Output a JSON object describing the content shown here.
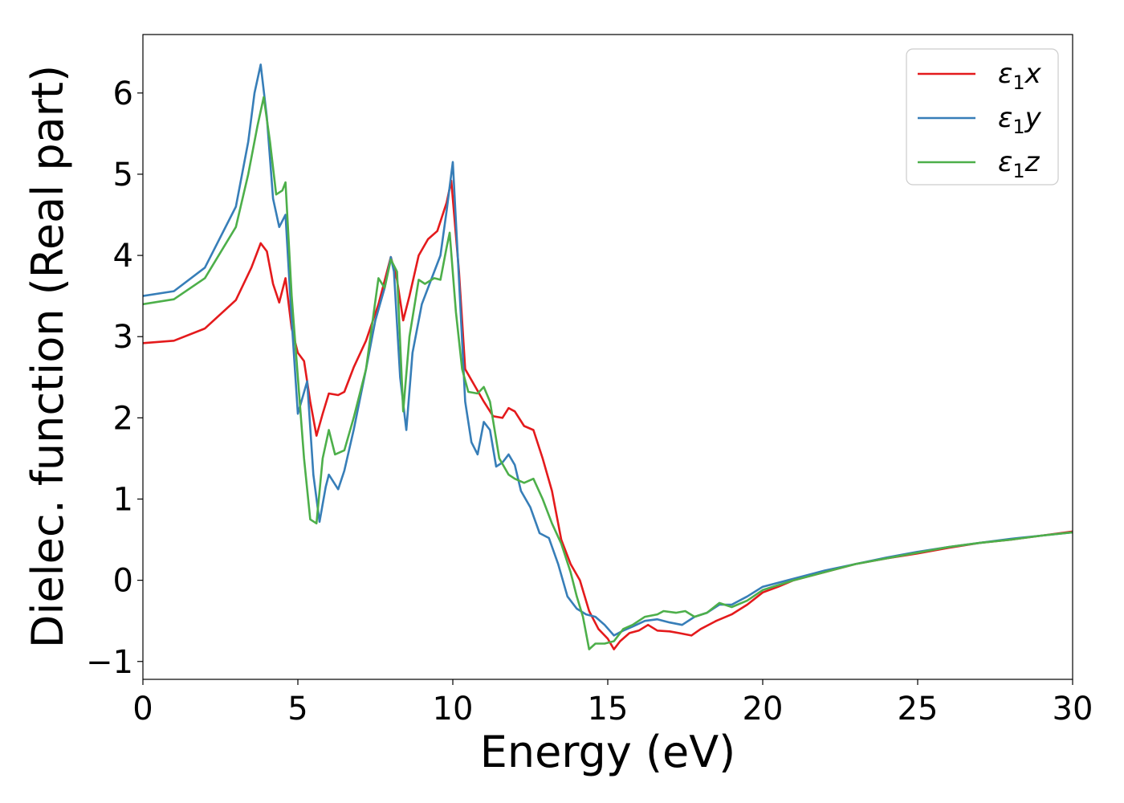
{
  "chart_data": {
    "type": "line",
    "title": "",
    "xlabel": "Energy (eV)",
    "ylabel": "Dielec. function (Real part)",
    "xlim": [
      0,
      30
    ],
    "ylim": [
      -1.22,
      6.72
    ],
    "xticks": [
      0,
      5,
      10,
      15,
      20,
      25,
      30
    ],
    "xtick_labels": [
      "0",
      "5",
      "10",
      "15",
      "20",
      "25",
      "30"
    ],
    "yticks": [
      -1,
      0,
      1,
      2,
      3,
      4,
      5,
      6
    ],
    "ytick_labels": [
      "−1",
      "0",
      "1",
      "2",
      "3",
      "4",
      "5",
      "6"
    ],
    "grid": false,
    "legend_position": "top-right",
    "series": [
      {
        "name": "ε1x",
        "color": "#e41a1c",
        "points": [
          [
            0,
            2.92
          ],
          [
            1,
            2.95
          ],
          [
            2,
            3.1
          ],
          [
            3,
            3.45
          ],
          [
            3.5,
            3.85
          ],
          [
            3.8,
            4.15
          ],
          [
            4.0,
            4.05
          ],
          [
            4.2,
            3.65
          ],
          [
            4.4,
            3.42
          ],
          [
            4.6,
            3.72
          ],
          [
            4.8,
            3.1
          ],
          [
            5.0,
            2.8
          ],
          [
            5.2,
            2.7
          ],
          [
            5.4,
            2.2
          ],
          [
            5.6,
            1.78
          ],
          [
            5.8,
            2.05
          ],
          [
            6.0,
            2.3
          ],
          [
            6.3,
            2.28
          ],
          [
            6.5,
            2.32
          ],
          [
            6.8,
            2.62
          ],
          [
            7.2,
            2.95
          ],
          [
            7.6,
            3.4
          ],
          [
            8.0,
            3.98
          ],
          [
            8.2,
            3.7
          ],
          [
            8.4,
            3.2
          ],
          [
            8.6,
            3.5
          ],
          [
            8.9,
            4.0
          ],
          [
            9.2,
            4.2
          ],
          [
            9.5,
            4.3
          ],
          [
            9.8,
            4.65
          ],
          [
            9.95,
            4.92
          ],
          [
            10.2,
            3.8
          ],
          [
            10.4,
            2.6
          ],
          [
            10.7,
            2.4
          ],
          [
            11.0,
            2.2
          ],
          [
            11.3,
            2.02
          ],
          [
            11.6,
            2.0
          ],
          [
            11.8,
            2.12
          ],
          [
            12.0,
            2.08
          ],
          [
            12.3,
            1.9
          ],
          [
            12.6,
            1.85
          ],
          [
            12.9,
            1.5
          ],
          [
            13.2,
            1.1
          ],
          [
            13.5,
            0.5
          ],
          [
            13.8,
            0.2
          ],
          [
            14.1,
            0.0
          ],
          [
            14.4,
            -0.38
          ],
          [
            14.7,
            -0.6
          ],
          [
            15.0,
            -0.72
          ],
          [
            15.2,
            -0.85
          ],
          [
            15.4,
            -0.75
          ],
          [
            15.7,
            -0.65
          ],
          [
            16.0,
            -0.62
          ],
          [
            16.3,
            -0.55
          ],
          [
            16.6,
            -0.62
          ],
          [
            17.0,
            -0.63
          ],
          [
            17.3,
            -0.65
          ],
          [
            17.7,
            -0.68
          ],
          [
            18.0,
            -0.6
          ],
          [
            18.5,
            -0.5
          ],
          [
            19.0,
            -0.42
          ],
          [
            19.5,
            -0.3
          ],
          [
            20.0,
            -0.15
          ],
          [
            20.5,
            -0.08
          ],
          [
            21.0,
            0.0
          ],
          [
            22.0,
            0.1
          ],
          [
            23.0,
            0.2
          ],
          [
            24.0,
            0.27
          ],
          [
            25.0,
            0.33
          ],
          [
            26.0,
            0.4
          ],
          [
            27.0,
            0.46
          ],
          [
            28.0,
            0.5
          ],
          [
            29.0,
            0.55
          ],
          [
            30.0,
            0.6
          ]
        ]
      },
      {
        "name": "ε1y",
        "color": "#377eb8",
        "points": [
          [
            0,
            3.5
          ],
          [
            1,
            3.56
          ],
          [
            2,
            3.85
          ],
          [
            3,
            4.6
          ],
          [
            3.4,
            5.4
          ],
          [
            3.6,
            6.0
          ],
          [
            3.8,
            6.35
          ],
          [
            4.0,
            5.7
          ],
          [
            4.2,
            4.7
          ],
          [
            4.4,
            4.35
          ],
          [
            4.6,
            4.5
          ],
          [
            4.8,
            3.2
          ],
          [
            5.0,
            2.05
          ],
          [
            5.3,
            2.45
          ],
          [
            5.5,
            1.3
          ],
          [
            5.7,
            0.72
          ],
          [
            5.9,
            1.15
          ],
          [
            6.0,
            1.3
          ],
          [
            6.3,
            1.12
          ],
          [
            6.5,
            1.35
          ],
          [
            6.8,
            1.85
          ],
          [
            7.2,
            2.6
          ],
          [
            7.5,
            3.2
          ],
          [
            7.8,
            3.6
          ],
          [
            8.0,
            3.98
          ],
          [
            8.1,
            3.8
          ],
          [
            8.3,
            2.5
          ],
          [
            8.5,
            1.85
          ],
          [
            8.7,
            2.8
          ],
          [
            9.0,
            3.4
          ],
          [
            9.3,
            3.7
          ],
          [
            9.6,
            4.0
          ],
          [
            9.8,
            4.55
          ],
          [
            10.0,
            5.15
          ],
          [
            10.2,
            3.7
          ],
          [
            10.4,
            2.2
          ],
          [
            10.6,
            1.7
          ],
          [
            10.8,
            1.55
          ],
          [
            11.0,
            1.95
          ],
          [
            11.2,
            1.85
          ],
          [
            11.4,
            1.4
          ],
          [
            11.6,
            1.45
          ],
          [
            11.8,
            1.55
          ],
          [
            12.0,
            1.42
          ],
          [
            12.2,
            1.1
          ],
          [
            12.5,
            0.9
          ],
          [
            12.8,
            0.58
          ],
          [
            13.1,
            0.52
          ],
          [
            13.4,
            0.2
          ],
          [
            13.7,
            -0.2
          ],
          [
            14.0,
            -0.35
          ],
          [
            14.3,
            -0.42
          ],
          [
            14.6,
            -0.45
          ],
          [
            14.9,
            -0.55
          ],
          [
            15.2,
            -0.68
          ],
          [
            15.5,
            -0.62
          ],
          [
            15.8,
            -0.57
          ],
          [
            16.2,
            -0.5
          ],
          [
            16.6,
            -0.48
          ],
          [
            17.0,
            -0.52
          ],
          [
            17.4,
            -0.55
          ],
          [
            17.8,
            -0.45
          ],
          [
            18.2,
            -0.4
          ],
          [
            18.6,
            -0.3
          ],
          [
            19.0,
            -0.3
          ],
          [
            19.5,
            -0.2
          ],
          [
            20.0,
            -0.08
          ],
          [
            21.0,
            0.02
          ],
          [
            22.0,
            0.12
          ],
          [
            23.0,
            0.2
          ],
          [
            24.0,
            0.28
          ],
          [
            25.0,
            0.35
          ],
          [
            26.0,
            0.41
          ],
          [
            27.0,
            0.46
          ],
          [
            28.0,
            0.51
          ],
          [
            29.0,
            0.55
          ],
          [
            30.0,
            0.59
          ]
        ]
      },
      {
        "name": "ε1z",
        "color": "#4daf4a",
        "points": [
          [
            0,
            3.4
          ],
          [
            1,
            3.46
          ],
          [
            2,
            3.72
          ],
          [
            3,
            4.35
          ],
          [
            3.4,
            5.0
          ],
          [
            3.7,
            5.6
          ],
          [
            3.9,
            5.95
          ],
          [
            4.1,
            5.4
          ],
          [
            4.3,
            4.75
          ],
          [
            4.5,
            4.8
          ],
          [
            4.6,
            4.9
          ],
          [
            4.8,
            3.5
          ],
          [
            5.0,
            2.5
          ],
          [
            5.2,
            1.5
          ],
          [
            5.4,
            0.75
          ],
          [
            5.6,
            0.7
          ],
          [
            5.8,
            1.5
          ],
          [
            6.0,
            1.85
          ],
          [
            6.2,
            1.55
          ],
          [
            6.5,
            1.6
          ],
          [
            6.8,
            2.0
          ],
          [
            7.2,
            2.6
          ],
          [
            7.6,
            3.72
          ],
          [
            7.8,
            3.6
          ],
          [
            8.0,
            3.95
          ],
          [
            8.2,
            3.8
          ],
          [
            8.4,
            2.08
          ],
          [
            8.6,
            3.0
          ],
          [
            8.9,
            3.7
          ],
          [
            9.1,
            3.65
          ],
          [
            9.4,
            3.72
          ],
          [
            9.6,
            3.7
          ],
          [
            9.8,
            4.1
          ],
          [
            9.9,
            4.28
          ],
          [
            10.1,
            3.3
          ],
          [
            10.3,
            2.6
          ],
          [
            10.5,
            2.32
          ],
          [
            10.8,
            2.3
          ],
          [
            11.0,
            2.38
          ],
          [
            11.2,
            2.2
          ],
          [
            11.5,
            1.5
          ],
          [
            11.8,
            1.3
          ],
          [
            12.0,
            1.25
          ],
          [
            12.3,
            1.2
          ],
          [
            12.6,
            1.25
          ],
          [
            12.9,
            1.0
          ],
          [
            13.2,
            0.7
          ],
          [
            13.5,
            0.45
          ],
          [
            13.8,
            0.1
          ],
          [
            14.0,
            -0.2
          ],
          [
            14.2,
            -0.45
          ],
          [
            14.4,
            -0.85
          ],
          [
            14.6,
            -0.78
          ],
          [
            14.9,
            -0.78
          ],
          [
            15.2,
            -0.75
          ],
          [
            15.5,
            -0.6
          ],
          [
            15.8,
            -0.55
          ],
          [
            16.2,
            -0.45
          ],
          [
            16.6,
            -0.42
          ],
          [
            16.8,
            -0.38
          ],
          [
            17.2,
            -0.4
          ],
          [
            17.5,
            -0.38
          ],
          [
            17.8,
            -0.45
          ],
          [
            18.2,
            -0.4
          ],
          [
            18.6,
            -0.28
          ],
          [
            19.0,
            -0.33
          ],
          [
            19.5,
            -0.25
          ],
          [
            20.0,
            -0.12
          ],
          [
            21.0,
            0.0
          ],
          [
            22.0,
            0.1
          ],
          [
            23.0,
            0.2
          ],
          [
            24.0,
            0.27
          ],
          [
            25.0,
            0.34
          ],
          [
            26.0,
            0.41
          ],
          [
            27.0,
            0.46
          ],
          [
            28.0,
            0.5
          ],
          [
            29.0,
            0.55
          ],
          [
            30.0,
            0.59
          ]
        ]
      }
    ],
    "legend": [
      {
        "sym": "ε",
        "sub": "1",
        "var": "x",
        "color": "#e41a1c"
      },
      {
        "sym": "ε",
        "sub": "1",
        "var": "y",
        "color": "#377eb8"
      },
      {
        "sym": "ε",
        "sub": "1",
        "var": "z",
        "color": "#4daf4a"
      }
    ]
  }
}
